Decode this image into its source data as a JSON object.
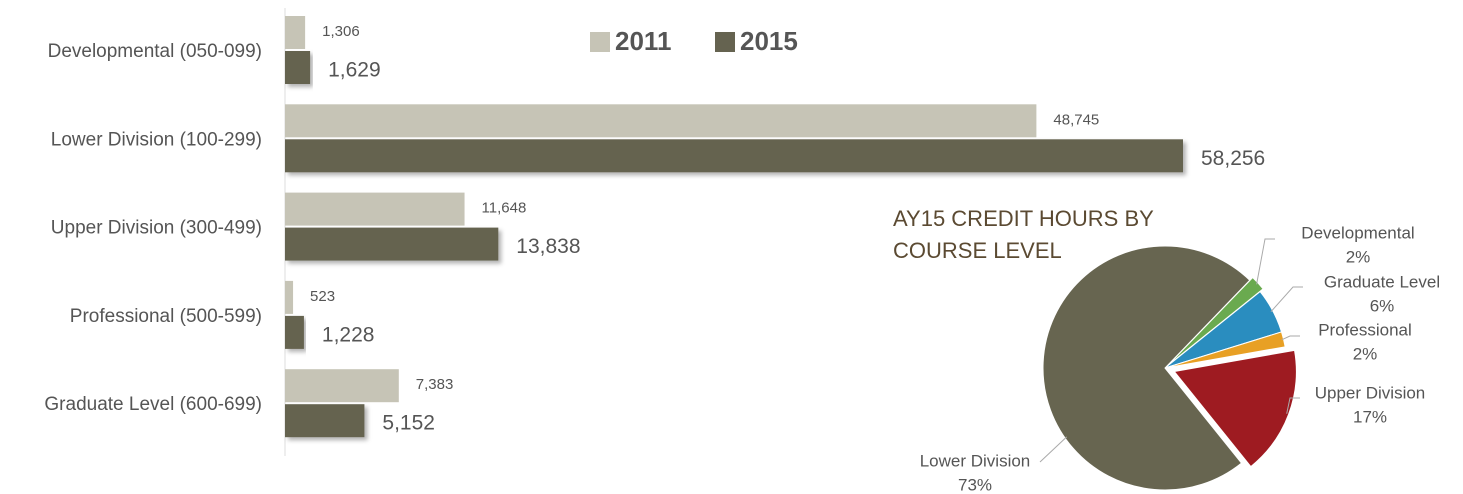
{
  "chart_data": [
    {
      "type": "bar",
      "orientation": "horizontal",
      "categories": [
        "Developmental (050-099)",
        "Lower Division (100-299)",
        "Upper Division (300-499)",
        "Professional (500-599)",
        "Graduate Level (600-699)"
      ],
      "series": [
        {
          "name": "2011",
          "color": "#c6c4b6",
          "values": [
            1306,
            48745,
            11648,
            523,
            7383
          ],
          "value_labels": [
            "1,306",
            "48,745",
            "11,648",
            "523",
            "7,383"
          ]
        },
        {
          "name": "2015",
          "color": "#656350",
          "values": [
            1629,
            58256,
            13838,
            1228,
            5152
          ],
          "value_labels": [
            "1,629",
            "58,256",
            "13,838",
            "1,228",
            "5,152"
          ]
        }
      ]
    },
    {
      "type": "pie",
      "title": "AY15 CREDIT HOURS BY COURSE LEVEL",
      "categories": [
        "Developmental",
        "Graduate Level",
        "Professional",
        "Upper Division",
        "Lower Division"
      ],
      "values": [
        2,
        6,
        2,
        17,
        73
      ],
      "value_labels": [
        "2%",
        "6%",
        "2%",
        "17%",
        "73%"
      ],
      "colors": [
        "#6aaa4f",
        "#2a8dbf",
        "#e8a024",
        "#9e1b21",
        "#676550"
      ]
    }
  ]
}
